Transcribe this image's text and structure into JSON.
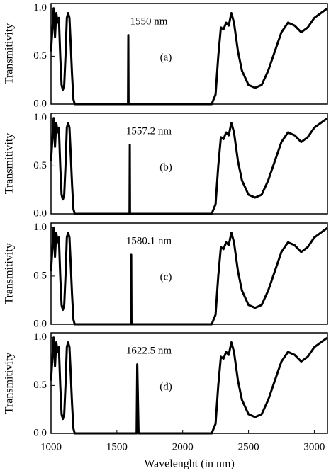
{
  "chart_data": [
    {
      "type": "line",
      "label": "1550 nm",
      "panel_label": "(a)",
      "ylabel": "Transmitivity",
      "color": "#000000",
      "xlim": [
        1000,
        3100
      ],
      "ylim": [
        0,
        1.05
      ],
      "yticks": [
        {
          "value": 0,
          "label": "0.0"
        },
        {
          "value": 0.5,
          "label": "0.5"
        },
        {
          "value": 1,
          "label": "1.0"
        }
      ],
      "x": [
        1000,
        1020,
        1030,
        1040,
        1050,
        1060,
        1070,
        1080,
        1090,
        1100,
        1110,
        1120,
        1130,
        1140,
        1150,
        1160,
        1170,
        1180,
        1200,
        1585,
        1587,
        1589,
        2220,
        2250,
        2270,
        2290,
        2310,
        2330,
        2350,
        2370,
        2390,
        2420,
        2450,
        2500,
        2550,
        2600,
        2650,
        2700,
        2750,
        2800,
        2850,
        2900,
        2950,
        3000,
        3050,
        3100
      ],
      "values": [
        0.55,
        1.0,
        0.7,
        0.95,
        0.85,
        0.9,
        0.5,
        0.2,
        0.15,
        0.2,
        0.5,
        0.9,
        0.95,
        0.9,
        0.6,
        0.3,
        0.05,
        0,
        0,
        0,
        0.72,
        0,
        0,
        0.1,
        0.5,
        0.8,
        0.78,
        0.85,
        0.82,
        0.95,
        0.85,
        0.55,
        0.35,
        0.2,
        0.17,
        0.2,
        0.35,
        0.55,
        0.75,
        0.85,
        0.82,
        0.75,
        0.8,
        0.9,
        0.95,
        1.0
      ]
    },
    {
      "type": "line",
      "label": "1557.2 nm",
      "panel_label": "(b)",
      "ylabel": "Transmitivity",
      "color": "#000000",
      "xlim": [
        1000,
        3100
      ],
      "ylim": [
        0,
        1.05
      ],
      "yticks": [
        {
          "value": 0,
          "label": "0.0"
        },
        {
          "value": 0.5,
          "label": "0.5"
        },
        {
          "value": 1,
          "label": "1.0"
        }
      ],
      "x": [
        1000,
        1020,
        1030,
        1040,
        1050,
        1060,
        1070,
        1080,
        1090,
        1100,
        1110,
        1120,
        1130,
        1140,
        1150,
        1160,
        1170,
        1180,
        1200,
        1596,
        1598,
        1600,
        2220,
        2250,
        2270,
        2290,
        2310,
        2330,
        2350,
        2370,
        2390,
        2420,
        2450,
        2500,
        2550,
        2600,
        2650,
        2700,
        2750,
        2800,
        2850,
        2900,
        2950,
        3000,
        3050,
        3100
      ],
      "values": [
        0.55,
        1.0,
        0.7,
        0.95,
        0.85,
        0.9,
        0.5,
        0.2,
        0.15,
        0.2,
        0.5,
        0.9,
        0.95,
        0.9,
        0.6,
        0.3,
        0.05,
        0,
        0,
        0,
        0.72,
        0,
        0,
        0.1,
        0.5,
        0.8,
        0.78,
        0.85,
        0.82,
        0.95,
        0.85,
        0.55,
        0.35,
        0.2,
        0.17,
        0.2,
        0.35,
        0.55,
        0.75,
        0.85,
        0.82,
        0.75,
        0.8,
        0.9,
        0.95,
        1.0
      ]
    },
    {
      "type": "line",
      "label": "1580.1 nm",
      "panel_label": "(c)",
      "ylabel": "Transmitivity",
      "color": "#000000",
      "xlim": [
        1000,
        3100
      ],
      "ylim": [
        0,
        1.05
      ],
      "yticks": [
        {
          "value": 0,
          "label": "0.0"
        },
        {
          "value": 0.5,
          "label": "0.5"
        },
        {
          "value": 1,
          "label": "1.0"
        }
      ],
      "x": [
        1000,
        1020,
        1030,
        1040,
        1050,
        1060,
        1070,
        1080,
        1090,
        1100,
        1110,
        1120,
        1130,
        1140,
        1150,
        1160,
        1170,
        1180,
        1200,
        1607,
        1609,
        1611,
        2220,
        2250,
        2270,
        2290,
        2310,
        2330,
        2350,
        2370,
        2390,
        2420,
        2450,
        2500,
        2550,
        2600,
        2650,
        2700,
        2750,
        2800,
        2850,
        2900,
        2950,
        3000,
        3050,
        3100
      ],
      "values": [
        0.55,
        1.0,
        0.7,
        0.95,
        0.85,
        0.9,
        0.5,
        0.2,
        0.15,
        0.2,
        0.5,
        0.9,
        0.95,
        0.9,
        0.6,
        0.3,
        0.05,
        0,
        0,
        0,
        0.72,
        0,
        0,
        0.1,
        0.5,
        0.8,
        0.78,
        0.85,
        0.82,
        0.95,
        0.85,
        0.55,
        0.35,
        0.2,
        0.17,
        0.2,
        0.35,
        0.55,
        0.75,
        0.85,
        0.82,
        0.75,
        0.8,
        0.9,
        0.95,
        1.0
      ]
    },
    {
      "type": "line",
      "label": "1622.5 nm",
      "panel_label": "(d)",
      "ylabel": "Transmitivity",
      "xlabel": "Wavelenght (in nm)",
      "color": "#000000",
      "xlim": [
        1000,
        3100
      ],
      "ylim": [
        0,
        1.05
      ],
      "xticks": [
        1000,
        1500,
        2000,
        2500,
        3000
      ],
      "yticks": [
        {
          "value": 0,
          "label": "0.0"
        },
        {
          "value": 0.5,
          "label": "0.5"
        },
        {
          "value": 1,
          "label": "1.0"
        }
      ],
      "x": [
        1000,
        1020,
        1030,
        1040,
        1050,
        1060,
        1070,
        1080,
        1090,
        1100,
        1110,
        1120,
        1130,
        1140,
        1150,
        1160,
        1170,
        1180,
        1200,
        1650,
        1655,
        1665,
        2220,
        2250,
        2270,
        2290,
        2310,
        2330,
        2350,
        2370,
        2390,
        2420,
        2450,
        2500,
        2550,
        2600,
        2650,
        2700,
        2750,
        2800,
        2850,
        2900,
        2950,
        3000,
        3050,
        3100
      ],
      "values": [
        0.55,
        1.0,
        0.7,
        0.95,
        0.85,
        0.9,
        0.5,
        0.2,
        0.15,
        0.2,
        0.5,
        0.9,
        0.95,
        0.9,
        0.6,
        0.3,
        0.05,
        0,
        0,
        0,
        0.72,
        0,
        0,
        0.1,
        0.5,
        0.8,
        0.78,
        0.85,
        0.82,
        0.95,
        0.85,
        0.55,
        0.35,
        0.2,
        0.17,
        0.2,
        0.35,
        0.55,
        0.75,
        0.85,
        0.82,
        0.75,
        0.8,
        0.9,
        0.95,
        1.0
      ]
    }
  ]
}
